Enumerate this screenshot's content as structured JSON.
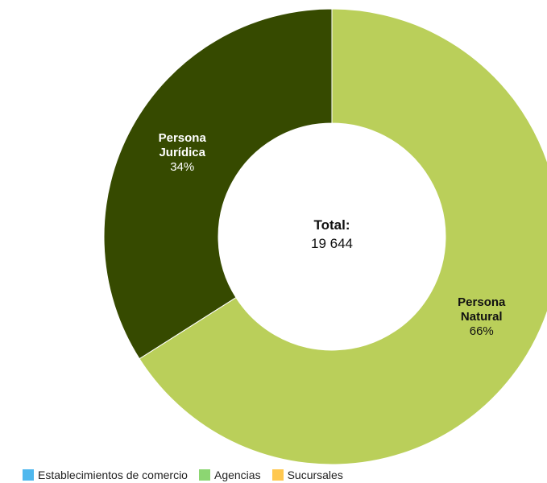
{
  "chart_data": {
    "type": "pie",
    "total_label": "Total:",
    "total_value": "19 644",
    "slices": [
      {
        "label_line1": "Persona",
        "label_line2": "Natural",
        "percent_label": "66%",
        "value": 66,
        "color": "#bacf5a",
        "text_color": "#111111"
      },
      {
        "label_line1": "Persona",
        "label_line2": "Jurídica",
        "percent_label": "34%",
        "value": 34,
        "color": "#364a00",
        "text_color": "#ffffff"
      }
    ],
    "legend": [
      {
        "label": "Establecimientos de comercio",
        "color": "#4fb8ee"
      },
      {
        "label": "Agencias",
        "color": "#8cd672"
      },
      {
        "label": "Sucursales",
        "color": "#ffc850"
      }
    ]
  }
}
